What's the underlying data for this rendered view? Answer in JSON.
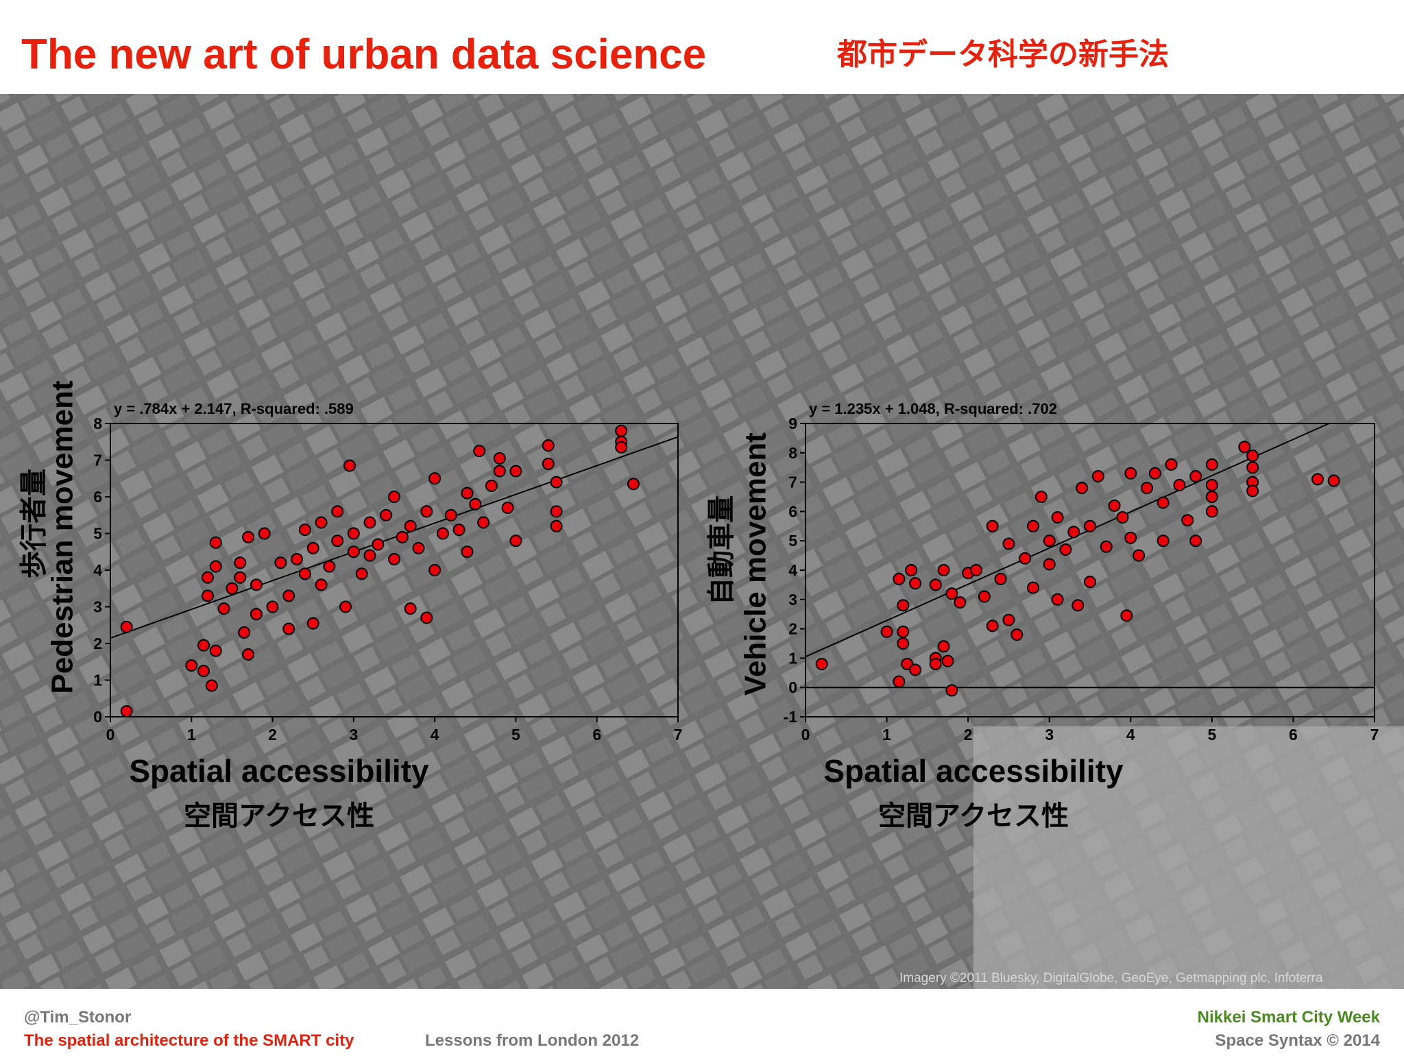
{
  "header": {
    "title": "The new art of urban data science",
    "title_ja": "都市データ科学の新手法"
  },
  "map_credit": "Imagery ©2011 Bluesky, DigitalGlobe, GeoEye, Getmapping plc, Infoterra",
  "footer": {
    "handle": "@Tim_Stonor",
    "talk": "The spatial architecture of the SMART city",
    "subtitle": "Lessons from London 2012",
    "event": "Nikkei Smart City Week",
    "copyright": "Space Syntax ©  2014"
  },
  "chart_data": [
    {
      "type": "scatter",
      "annotation": "y = .784x + 2.147, R-squared: .589",
      "xlabel": "Spatial accessibility",
      "xlabel_ja": "空間アクセス性",
      "ylabel": "Pedestrian movement",
      "ylabel_ja": "歩行者量",
      "xlim": [
        0,
        7
      ],
      "ylim": [
        0,
        8
      ],
      "xticks": [
        0,
        1,
        2,
        3,
        4,
        5,
        6,
        7
      ],
      "yticks": [
        0,
        1,
        2,
        3,
        4,
        5,
        6,
        7,
        8
      ],
      "trendline": {
        "slope": 0.784,
        "intercept": 2.147
      },
      "zero_line": false,
      "series": [
        {
          "color": "#e8000b",
          "x": [
            0.2,
            0.2,
            1.0,
            1.15,
            1.15,
            1.25,
            1.3,
            1.2,
            1.2,
            1.3,
            1.3,
            1.4,
            1.5,
            1.6,
            1.6,
            1.65,
            1.7,
            1.7,
            1.8,
            1.8,
            1.9,
            2.0,
            2.1,
            2.2,
            2.2,
            2.3,
            2.4,
            2.4,
            2.5,
            2.5,
            2.6,
            2.6,
            2.7,
            2.8,
            2.8,
            2.9,
            2.95,
            3.0,
            3.0,
            3.1,
            3.2,
            3.2,
            3.3,
            3.4,
            3.5,
            3.5,
            3.6,
            3.7,
            3.7,
            3.8,
            3.9,
            3.9,
            4.0,
            4.0,
            4.1,
            4.2,
            4.3,
            4.4,
            4.4,
            4.5,
            4.55,
            4.6,
            4.7,
            4.8,
            4.8,
            4.9,
            5.0,
            5.0,
            5.4,
            5.4,
            5.5,
            5.5,
            5.5,
            6.3,
            6.3,
            6.3,
            6.45
          ],
          "values": [
            2.45,
            0.15,
            1.4,
            1.95,
            1.25,
            0.85,
            1.8,
            3.3,
            3.8,
            4.75,
            4.1,
            2.95,
            3.5,
            3.8,
            4.2,
            2.3,
            1.7,
            4.9,
            3.6,
            2.8,
            5.0,
            3.0,
            4.2,
            3.3,
            2.4,
            4.3,
            5.1,
            3.9,
            2.55,
            4.6,
            3.6,
            5.3,
            4.1,
            5.6,
            4.8,
            3.0,
            6.85,
            4.5,
            5.0,
            3.9,
            5.3,
            4.4,
            4.7,
            5.5,
            4.3,
            6.0,
            4.9,
            5.2,
            2.95,
            4.6,
            2.7,
            5.6,
            4.0,
            6.5,
            5.0,
            5.5,
            5.1,
            6.1,
            4.5,
            5.8,
            7.25,
            5.3,
            6.3,
            7.05,
            6.7,
            5.7,
            6.7,
            4.8,
            7.4,
            6.9,
            5.6,
            5.2,
            6.4,
            7.8,
            7.5,
            7.35,
            6.35
          ]
        }
      ]
    },
    {
      "type": "scatter",
      "annotation": "y = 1.235x + 1.048, R-squared: .702",
      "xlabel": "Spatial accessibility",
      "xlabel_ja": "空間アクセス性",
      "ylabel": "Vehicle movement",
      "ylabel_ja": "自動車量",
      "xlim": [
        0,
        7
      ],
      "ylim": [
        -1,
        9
      ],
      "xticks": [
        0,
        1,
        2,
        3,
        4,
        5,
        6,
        7
      ],
      "yticks": [
        -1,
        0,
        1,
        2,
        3,
        4,
        5,
        6,
        7,
        8,
        9
      ],
      "trendline": {
        "slope": 1.235,
        "intercept": 1.048
      },
      "zero_line": true,
      "series": [
        {
          "color": "#e8000b",
          "x": [
            0.2,
            1.0,
            1.15,
            1.2,
            1.2,
            1.25,
            1.35,
            1.15,
            1.2,
            1.3,
            1.35,
            1.6,
            1.6,
            1.7,
            1.75,
            1.8,
            1.6,
            1.7,
            1.8,
            1.9,
            2.0,
            2.1,
            2.2,
            2.3,
            2.3,
            2.4,
            2.5,
            2.5,
            2.6,
            2.7,
            2.8,
            2.8,
            2.9,
            3.0,
            3.0,
            3.1,
            3.1,
            3.2,
            3.3,
            3.35,
            3.4,
            3.5,
            3.5,
            3.6,
            3.7,
            3.8,
            3.9,
            4.0,
            4.0,
            4.1,
            4.2,
            4.3,
            4.4,
            4.4,
            4.5,
            4.6,
            4.7,
            4.8,
            4.8,
            5.0,
            5.0,
            5.0,
            5.0,
            5.4,
            5.5,
            5.5,
            5.5,
            5.5,
            6.3,
            6.5,
            3.95
          ],
          "values": [
            0.8,
            1.9,
            0.2,
            1.9,
            1.5,
            0.8,
            0.6,
            3.7,
            2.8,
            4.0,
            3.55,
            1.0,
            0.8,
            1.4,
            0.9,
            -0.1,
            3.5,
            4.0,
            3.2,
            2.9,
            3.9,
            4.0,
            3.1,
            5.5,
            2.1,
            3.7,
            4.9,
            2.3,
            1.8,
            4.4,
            5.5,
            3.4,
            6.5,
            5.0,
            4.2,
            5.8,
            3.0,
            4.7,
            5.3,
            2.8,
            6.8,
            5.5,
            3.6,
            7.2,
            4.8,
            6.2,
            5.8,
            7.3,
            5.1,
            4.5,
            6.8,
            7.3,
            6.3,
            5.0,
            7.6,
            6.9,
            5.7,
            7.2,
            5.0,
            7.6,
            6.9,
            6.5,
            6.0,
            8.2,
            7.9,
            7.5,
            7.0,
            6.7,
            7.1,
            7.05,
            2.45
          ]
        }
      ]
    }
  ]
}
